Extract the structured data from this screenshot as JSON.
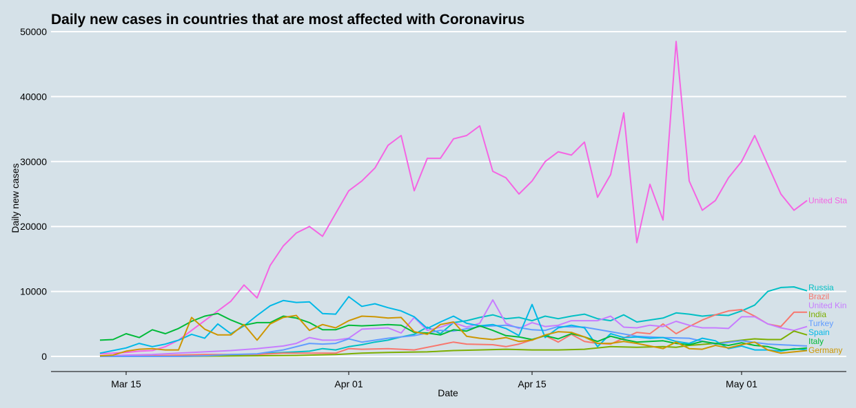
{
  "chart_data": {
    "type": "line",
    "title": "Daily new cases in countries that are most affected with Coronavirus",
    "xlabel": "Date",
    "ylabel": "Daily new cases",
    "x_ticks": [
      {
        "day": 15,
        "label": "Mar 15"
      },
      {
        "day": 32,
        "label": "Apr 01"
      },
      {
        "day": 46,
        "label": "Apr 15"
      },
      {
        "day": 62,
        "label": "May 01"
      }
    ],
    "y_ticks": [
      0,
      10000,
      20000,
      30000,
      40000,
      50000
    ],
    "ylim": [
      -2200,
      50500
    ],
    "xlim": [
      11.5,
      68
    ],
    "x_day_reference": "day 1 = Mar 01",
    "grid": true,
    "legend": "direct labels at line ends",
    "series": [
      {
        "name": "United States",
        "label": "United Sta",
        "color": "#f564e3",
        "x": [
          13,
          14,
          15,
          16,
          17,
          18,
          19,
          20,
          21,
          22,
          23,
          24,
          25,
          26,
          27,
          28,
          29,
          30,
          31,
          32,
          33,
          34,
          35,
          36,
          37,
          38,
          39,
          40,
          41,
          42,
          43,
          44,
          45,
          46,
          47,
          48,
          49,
          50,
          51,
          52,
          53,
          54,
          55,
          56,
          57,
          58,
          59,
          60,
          61,
          62,
          63,
          64,
          65,
          66,
          67
        ],
        "values": [
          400,
          500,
          600,
          800,
          900,
          1500,
          2500,
          4000,
          5500,
          7000,
          8500,
          11000,
          9000,
          14000,
          17000,
          19000,
          20000,
          18500,
          22000,
          25500,
          27000,
          29000,
          32500,
          34000,
          25500,
          30500,
          30500,
          33500,
          34000,
          35500,
          28500,
          27500,
          25000,
          27000,
          30000,
          31500,
          31000,
          33000,
          24500,
          28000,
          37500,
          17500,
          26500,
          21000,
          48500,
          27000,
          22500,
          24000,
          27500,
          30000,
          34000,
          29500,
          25000,
          22500,
          24000
        ]
      },
      {
        "name": "Russia",
        "label": "Russia",
        "color": "#00bfc4",
        "x": [
          13,
          14,
          15,
          16,
          17,
          18,
          19,
          20,
          21,
          22,
          23,
          24,
          25,
          26,
          27,
          28,
          29,
          30,
          31,
          32,
          33,
          34,
          35,
          36,
          37,
          38,
          39,
          40,
          41,
          42,
          43,
          44,
          45,
          46,
          47,
          48,
          49,
          50,
          51,
          52,
          53,
          54,
          55,
          56,
          57,
          58,
          59,
          60,
          61,
          62,
          63,
          64,
          65,
          66,
          67
        ],
        "values": [
          100,
          100,
          100,
          100,
          100,
          100,
          100,
          100,
          100,
          200,
          200,
          300,
          300,
          500,
          600,
          700,
          800,
          1200,
          1000,
          1500,
          1800,
          2200,
          2500,
          3000,
          3400,
          4500,
          3500,
          5200,
          5500,
          6000,
          6400,
          5800,
          6000,
          5500,
          6200,
          5800,
          6200,
          6500,
          5800,
          5500,
          6400,
          5300,
          5600,
          5900,
          6700,
          6500,
          6200,
          6400,
          6300,
          7000,
          7900,
          10000,
          10600,
          10700,
          10100
        ]
      },
      {
        "name": "Brazil",
        "label": "Brazil",
        "color": "#f8766d",
        "x": [
          13,
          15,
          17,
          19,
          21,
          23,
          25,
          27,
          29,
          31,
          32,
          33,
          35,
          37,
          39,
          40,
          41,
          43,
          44,
          45,
          47,
          48,
          49,
          50,
          51,
          52,
          53,
          54,
          55,
          56,
          57,
          58,
          59,
          60,
          61,
          62,
          63,
          64,
          65,
          66,
          67
        ],
        "values": [
          100,
          100,
          100,
          200,
          300,
          300,
          300,
          500,
          500,
          500,
          1200,
          1100,
          1200,
          1000,
          1800,
          2200,
          1900,
          1800,
          1500,
          1900,
          3200,
          2200,
          3400,
          2300,
          2000,
          1900,
          2800,
          3700,
          3500,
          5000,
          3500,
          4600,
          5600,
          6400,
          7000,
          7200,
          6200,
          5000,
          4600,
          6800,
          6800
        ]
      },
      {
        "name": "United Kingdom",
        "label": "United Kin",
        "color": "#c77cff",
        "x": [
          13,
          15,
          17,
          19,
          21,
          23,
          25,
          27,
          28,
          29,
          30,
          31,
          32,
          33,
          35,
          36,
          37,
          38,
          39,
          40,
          41,
          42,
          43,
          44,
          45,
          46,
          47,
          48,
          49,
          50,
          51,
          52,
          53,
          54,
          55,
          56,
          57,
          58,
          59,
          60,
          61,
          62,
          63,
          64,
          65,
          66,
          67
        ],
        "values": [
          100,
          200,
          300,
          500,
          700,
          900,
          1200,
          1600,
          2000,
          2900,
          2500,
          2500,
          2800,
          4200,
          4400,
          3600,
          6000,
          4000,
          4500,
          5200,
          4500,
          5100,
          8700,
          5100,
          4300,
          5200,
          4600,
          4800,
          5500,
          5500,
          5500,
          6200,
          4500,
          4400,
          4800,
          4600,
          5400,
          4800,
          4400,
          4400,
          4300,
          6100,
          6100,
          5000,
          4400,
          4000,
          4600
        ]
      },
      {
        "name": "India",
        "label": "India",
        "color": "#7cae00",
        "x": [
          13,
          16,
          19,
          22,
          25,
          28,
          31,
          33,
          35,
          38,
          40,
          42,
          44,
          46,
          48,
          50,
          52,
          54,
          56,
          57,
          58,
          60,
          62,
          63,
          64,
          65,
          66,
          67
        ],
        "values": [
          0,
          0,
          0,
          50,
          100,
          150,
          300,
          500,
          600,
          700,
          900,
          1000,
          1100,
          1000,
          1000,
          1100,
          1500,
          1400,
          1500,
          1400,
          1700,
          2000,
          2500,
          2700,
          2600,
          2600,
          3900,
          3300
        ]
      },
      {
        "name": "Turkey",
        "label": "Turkey",
        "color": "#619cff",
        "x": [
          13,
          15,
          17,
          19,
          21,
          23,
          25,
          27,
          29,
          30,
          31,
          32,
          33,
          35,
          37,
          39,
          40,
          42,
          44,
          46,
          47,
          48,
          50,
          52,
          54,
          56,
          58,
          60,
          62,
          64,
          66,
          67
        ],
        "values": [
          0,
          0,
          0,
          0,
          100,
          300,
          400,
          1000,
          2000,
          1900,
          2000,
          2700,
          2200,
          2800,
          3200,
          4000,
          3900,
          4600,
          4800,
          4100,
          4000,
          4600,
          4500,
          3800,
          3100,
          2900,
          2800,
          1900,
          2400,
          1900,
          1700,
          1600
        ]
      },
      {
        "name": "Spain",
        "label": "Spain",
        "color": "#00b8e7",
        "x": [
          13,
          15,
          16,
          17,
          18,
          19,
          20,
          21,
          22,
          23,
          24,
          25,
          26,
          27,
          28,
          29,
          30,
          31,
          32,
          33,
          34,
          35,
          36,
          37,
          38,
          39,
          40,
          41,
          42,
          43,
          44,
          45,
          46,
          47,
          48,
          49,
          50,
          51,
          52,
          53,
          54,
          55,
          56,
          57,
          58,
          59,
          60,
          61,
          62,
          63,
          64,
          65,
          66,
          67
        ],
        "values": [
          500,
          1300,
          2000,
          1500,
          1900,
          2500,
          3400,
          2800,
          5000,
          3500,
          4700,
          6300,
          7800,
          8600,
          8300,
          8400,
          6600,
          6500,
          9200,
          7700,
          8100,
          7500,
          7000,
          6100,
          4300,
          5300,
          6200,
          5100,
          4700,
          4900,
          4300,
          3200,
          8000,
          2900,
          4400,
          4800,
          4400,
          1500,
          3500,
          2900,
          3000,
          2800,
          2900,
          2300,
          2000,
          2800,
          2400,
          1200,
          1600,
          1000,
          1000,
          800,
          1200,
          1000
        ]
      },
      {
        "name": "Italy",
        "label": "Italy",
        "color": "#00ba38",
        "x": [
          13,
          14,
          15,
          16,
          17,
          18,
          19,
          20,
          21,
          22,
          23,
          24,
          25,
          26,
          27,
          28,
          29,
          30,
          31,
          32,
          33,
          34,
          35,
          36,
          37,
          38,
          39,
          40,
          41,
          42,
          43,
          44,
          45,
          46,
          47,
          48,
          49,
          50,
          51,
          52,
          53,
          54,
          55,
          56,
          57,
          58,
          59,
          60,
          61,
          62,
          63,
          64,
          65,
          66,
          67
        ],
        "values": [
          2500,
          2600,
          3500,
          2900,
          4100,
          3500,
          4300,
          5400,
          6200,
          6600,
          5600,
          4800,
          5200,
          5200,
          6200,
          5900,
          5200,
          4100,
          4100,
          4800,
          4700,
          4800,
          4900,
          4800,
          3700,
          3600,
          3300,
          4100,
          3900,
          4700,
          4000,
          3200,
          3000,
          2600,
          3200,
          2700,
          3500,
          3000,
          2300,
          3100,
          2600,
          2200,
          2300,
          2400,
          2000,
          1800,
          2300,
          2000,
          1700,
          2100,
          1700,
          1500,
          1000,
          1100,
          1300
        ]
      },
      {
        "name": "Germany",
        "label": "Germany",
        "color": "#cd9600",
        "x": [
          13,
          14,
          15,
          16,
          17,
          18,
          19,
          20,
          21,
          22,
          23,
          24,
          25,
          26,
          27,
          28,
          29,
          30,
          31,
          32,
          33,
          34,
          35,
          36,
          37,
          38,
          39,
          40,
          41,
          42,
          43,
          44,
          45,
          46,
          47,
          48,
          49,
          50,
          51,
          52,
          53,
          54,
          55,
          56,
          57,
          58,
          59,
          60,
          61,
          62,
          63,
          64,
          65,
          66,
          67
        ],
        "values": [
          100,
          200,
          800,
          1100,
          1200,
          1000,
          1000,
          6000,
          4200,
          3300,
          3300,
          4900,
          2500,
          5000,
          6000,
          6300,
          4000,
          4900,
          4400,
          5500,
          6200,
          6100,
          5900,
          6000,
          3800,
          3400,
          4900,
          5300,
          3100,
          2800,
          2600,
          2900,
          2300,
          2500,
          3300,
          3800,
          3700,
          3000,
          2000,
          2000,
          2300,
          2000,
          1600,
          1200,
          2200,
          1200,
          1100,
          1700,
          1300,
          1800,
          2200,
          1000,
          500,
          700,
          900
        ]
      }
    ]
  }
}
